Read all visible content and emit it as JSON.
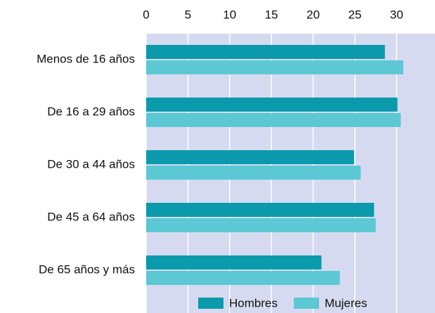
{
  "chart_data": {
    "type": "hbar",
    "categories": [
      "Menos de 16 años",
      "De 16 a 29 años",
      "De 30 a 44 años",
      "De 45 a 64 años",
      "De 65 años y más"
    ],
    "series": [
      {
        "name": "Hombres",
        "color": "#0a9aac",
        "values": [
          28.6,
          30.1,
          24.9,
          27.3,
          21.0
        ]
      },
      {
        "name": "Mujeres",
        "color": "#5bc8d4",
        "values": [
          30.8,
          30.5,
          25.7,
          27.5,
          23.2
        ]
      }
    ],
    "xlim": [
      0,
      34.6
    ],
    "xticks": [
      0,
      5,
      10,
      15,
      20,
      25,
      30
    ],
    "grid": true,
    "legend": "bottom"
  }
}
